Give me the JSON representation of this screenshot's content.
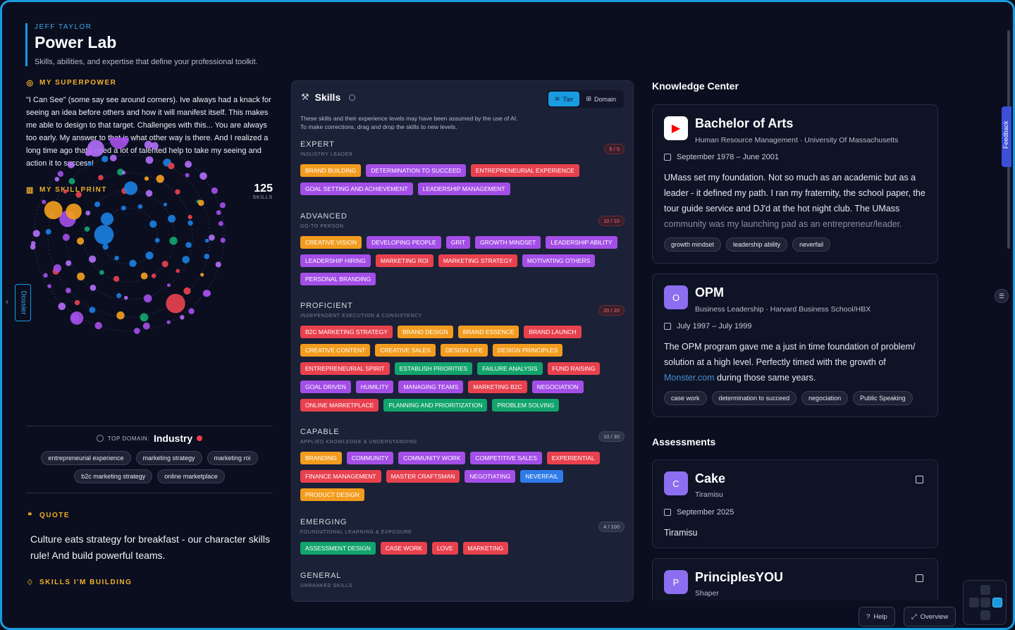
{
  "header": {
    "owner": "JEFF TAYLOR",
    "title": "Power Lab",
    "subtitle": "Skills, abilities, and expertise that define your professional toolkit."
  },
  "superpower": {
    "label": "MY SUPERPOWER",
    "text": "\"I Can See\" (some say see around corners). Ive always had a knack for seeing an idea before others and how it will manifest itself. This makes me able to design to that target. Challenges with this... You are always too early. My answer to that is what other way is there. And I realized a long time ago that I need a lot of talented help to take my seeing and action it to success!"
  },
  "skillprint": {
    "label": "MY SKILLPRINT",
    "count": "125",
    "count_label": "SKILLS"
  },
  "top_domain": {
    "label": "TOP DOMAIN:",
    "value": "Industry",
    "chips": [
      "entrepreneurial experience",
      "marketing strategy",
      "marketing roi",
      "b2c marketing strategy",
      "online marketplace"
    ]
  },
  "quote": {
    "label": "QUOTE",
    "text": "Culture eats strategy for breakfast - our character skills rule! And build powerful teams."
  },
  "building": {
    "label": "SKILLS I'M BUILDING"
  },
  "dossier": "Dossier",
  "skills_panel": {
    "title": "Skills",
    "toggle": {
      "tier": "Tier",
      "domain": "Domain"
    },
    "note_line1": "These skills and their experience levels may have been assumed by the use of AI.",
    "note_line2": "To make corrections, drag and drop the skills to new levels.",
    "tiers": [
      {
        "name": "EXPERT",
        "sub": "INDUSTRY LEADER",
        "badge": "5 / 5",
        "badge_style": "red",
        "tags": [
          {
            "t": "BRAND BUILDING",
            "c": "orange"
          },
          {
            "t": "DETERMINATION TO SUCCEED",
            "c": "purple"
          },
          {
            "t": "ENTREPRENEURIAL EXPERIENCE",
            "c": "red"
          },
          {
            "t": "GOAL SETTING AND ACHIEVEMENT",
            "c": "purple"
          },
          {
            "t": "LEADERSHIP MANAGEMENT",
            "c": "purple"
          }
        ]
      },
      {
        "name": "ADVANCED",
        "sub": "GO-TO PERSON",
        "badge": "10 / 10",
        "badge_style": "red",
        "tags": [
          {
            "t": "CREATIVE VISION",
            "c": "orange"
          },
          {
            "t": "DEVELOPING PEOPLE",
            "c": "purple"
          },
          {
            "t": "GRIT",
            "c": "purple"
          },
          {
            "t": "GROWTH MINDSET",
            "c": "purple"
          },
          {
            "t": "LEADERSHIP ABILITY",
            "c": "purple"
          },
          {
            "t": "LEADERSHIP HIRING",
            "c": "purple"
          },
          {
            "t": "MARKETING ROI",
            "c": "red"
          },
          {
            "t": "MARKETING STRATEGY",
            "c": "red"
          },
          {
            "t": "MOTIVATING OTHERS",
            "c": "purple"
          },
          {
            "t": "PERSONAL BRANDING",
            "c": "purple"
          }
        ]
      },
      {
        "name": "PROFICIENT",
        "sub": "INDEPENDENT EXECUTION & CONSISTENCY",
        "badge": "20 / 20",
        "badge_style": "red",
        "tags": [
          {
            "t": "B2C MARKETING STRATEGY",
            "c": "red"
          },
          {
            "t": "BRAND DESIGN",
            "c": "orange"
          },
          {
            "t": "BRAND ESSENCE",
            "c": "orange"
          },
          {
            "t": "BRAND LAUNCH",
            "c": "red"
          },
          {
            "t": "CREATIVE CONTENT",
            "c": "orange"
          },
          {
            "t": "CREATIVE SALES",
            "c": "orange"
          },
          {
            "t": "DESIGN LIFE",
            "c": "orange"
          },
          {
            "t": "DESIGN PRINCIPLES",
            "c": "orange"
          },
          {
            "t": "ENTREPRENEURIAL SPIRIT",
            "c": "red"
          },
          {
            "t": "ESTABLISH PRIORITIES",
            "c": "green"
          },
          {
            "t": "FAILURE ANALYSIS",
            "c": "green"
          },
          {
            "t": "FUND RAISING",
            "c": "red"
          },
          {
            "t": "GOAL DRIVEN",
            "c": "purple"
          },
          {
            "t": "HUMILITY",
            "c": "purple"
          },
          {
            "t": "MANAGING TEAMS",
            "c": "purple"
          },
          {
            "t": "MARKETING B2C",
            "c": "red"
          },
          {
            "t": "NEGOCIATION",
            "c": "purple"
          },
          {
            "t": "ONLINE MARKETPLACE",
            "c": "red"
          },
          {
            "t": "PLANNING AND PRIORITIZATION",
            "c": "green"
          },
          {
            "t": "PROBLEM SOLVING",
            "c": "green"
          }
        ]
      },
      {
        "name": "CAPABLE",
        "sub": "APPLIED KNOWLEDGE & UNDERSTANDING",
        "badge": "10 / 30",
        "badge_style": "gray",
        "tags": [
          {
            "t": "BRANDING",
            "c": "orange"
          },
          {
            "t": "COMMUNITY",
            "c": "purple"
          },
          {
            "t": "COMMUNITY WORK",
            "c": "purple"
          },
          {
            "t": "COMPETITIVE SALES",
            "c": "purple"
          },
          {
            "t": "EXPERIENTIAL",
            "c": "red"
          },
          {
            "t": "FINANCE MANAGEMENT",
            "c": "red"
          },
          {
            "t": "MASTER CRAFTSMAN",
            "c": "red"
          },
          {
            "t": "NEGOTIATING",
            "c": "purple"
          },
          {
            "t": "NEVERFAIL",
            "c": "blue"
          },
          {
            "t": "PRODUCT DESIGN",
            "c": "orange"
          }
        ]
      },
      {
        "name": "EMERGING",
        "sub": "FOUNDATIONAL LEARNING & EXPOSURE",
        "badge": "4 / 100",
        "badge_style": "gray",
        "tags": [
          {
            "t": "ASSESSMENT DESIGN",
            "c": "green"
          },
          {
            "t": "CASE WORK",
            "c": "red"
          },
          {
            "t": "LOVE",
            "c": "red"
          },
          {
            "t": "MARKETING",
            "c": "red"
          }
        ]
      },
      {
        "name": "GENERAL",
        "sub": "UNRANKED SKILLS",
        "badge": "",
        "badge_style": "gray",
        "tags": []
      }
    ]
  },
  "knowledge": {
    "title": "Knowledge Center",
    "cards": [
      {
        "title": "Bachelor of Arts",
        "sub": "Human Resource Management · University Of Massachusetts",
        "date": "September 1978 – June 2001",
        "desc_main": "UMass set my foundation. Not so much as an academic but as a leader - it defined my path. I ran my fraternity, the school paper, the tour guide service and DJ'd at the hot night club. The UMass",
        "desc_fade": "community was my launching pad as an entrepreneur/leader.",
        "chips": [
          "growth mindset",
          "leadership ability",
          "neverfail"
        ],
        "logo": "▶",
        "logo_color": "#ff0000"
      },
      {
        "title": "OPM",
        "sub": "Business Leadership · Harvard Business School/HBX",
        "date": "July 1997 – July 1999",
        "desc_main": "The OPM program gave me a just in time foundation of problem/ solution at a high level. Perfectly timed with the growth of",
        "desc_link": "Monster.com",
        "desc_tail": " during those same years.",
        "chips": [
          "case work",
          "determination to succeed",
          "negociation",
          "Public Speaking"
        ],
        "logo": "O",
        "logo_color": "#8b6ff0"
      }
    ]
  },
  "assessments": {
    "title": "Assessments",
    "cards": [
      {
        "title": "Cake",
        "sub": "Tiramisu",
        "date": "September 2025",
        "desc": "Tiramisu",
        "logo": "C",
        "logo_color": "#8b6ff0"
      },
      {
        "title": "PrinciplesYOU",
        "sub": "Shaper",
        "logo": "P",
        "logo_color": "#8b6ff0"
      }
    ]
  },
  "feedback": "Feedback",
  "bottom": {
    "help": "Help",
    "overview": "Overview"
  }
}
